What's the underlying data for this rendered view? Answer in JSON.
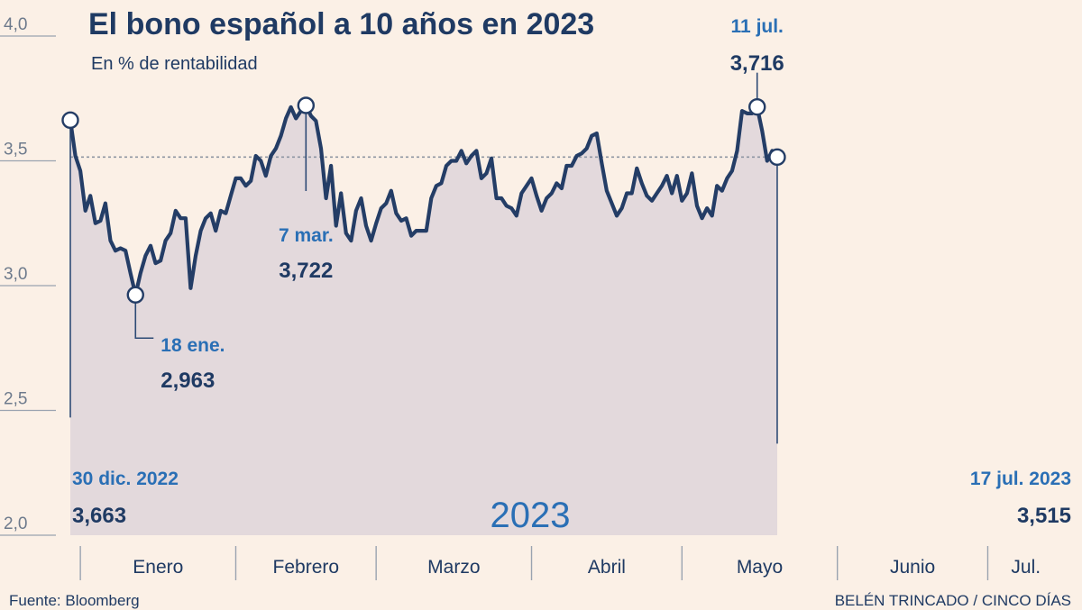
{
  "chart_data": {
    "type": "area",
    "title": "El bono español a 10 años en 2023",
    "subtitle": "En % de rentabilidad",
    "year_label": "2023",
    "ylim": [
      2.0,
      4.0
    ],
    "yticks": [
      {
        "value": 2.0,
        "label": "2,0"
      },
      {
        "value": 2.5,
        "label": "2,5"
      },
      {
        "value": 3.0,
        "label": "3,0"
      },
      {
        "value": 3.5,
        "label": "3,5"
      },
      {
        "value": 4.0,
        "label": "4,0"
      }
    ],
    "reference_line": 3.515,
    "months": [
      "Enero",
      "Febrero",
      "Marzo",
      "Abril",
      "Mayo",
      "Junio",
      "Jul."
    ],
    "month_days": [
      0,
      31,
      59,
      90,
      120,
      151,
      181
    ],
    "x_start": -2,
    "x_end": 198,
    "series": [
      {
        "values": [
          [
            -2,
            3.663
          ],
          [
            -1,
            3.52
          ],
          [
            0,
            3.46
          ],
          [
            1,
            3.3
          ],
          [
            2,
            3.36
          ],
          [
            3,
            3.25
          ],
          [
            4,
            3.26
          ],
          [
            5,
            3.33
          ],
          [
            6,
            3.18
          ],
          [
            7,
            3.14
          ],
          [
            8,
            3.15
          ],
          [
            9,
            3.14
          ],
          [
            10,
            3.05
          ],
          [
            11,
            2.963
          ],
          [
            12,
            3.05
          ],
          [
            13,
            3.12
          ],
          [
            14,
            3.16
          ],
          [
            15,
            3.09
          ],
          [
            16,
            3.1
          ],
          [
            17,
            3.18
          ],
          [
            18,
            3.21
          ],
          [
            19,
            3.3
          ],
          [
            20,
            3.27
          ],
          [
            21,
            3.27
          ],
          [
            22,
            2.99
          ],
          [
            23,
            3.12
          ],
          [
            24,
            3.22
          ],
          [
            25,
            3.27
          ],
          [
            26,
            3.29
          ],
          [
            27,
            3.22
          ],
          [
            28,
            3.3
          ],
          [
            29,
            3.29
          ],
          [
            30,
            3.36
          ],
          [
            31,
            3.43
          ],
          [
            32,
            3.43
          ],
          [
            33,
            3.4
          ],
          [
            34,
            3.42
          ],
          [
            35,
            3.52
          ],
          [
            36,
            3.5
          ],
          [
            37,
            3.44
          ],
          [
            38,
            3.52
          ],
          [
            39,
            3.55
          ],
          [
            40,
            3.6
          ],
          [
            41,
            3.67
          ],
          [
            42,
            3.715
          ],
          [
            43,
            3.67
          ],
          [
            44,
            3.7
          ],
          [
            45,
            3.722
          ],
          [
            46,
            3.68
          ],
          [
            47,
            3.66
          ],
          [
            48,
            3.55
          ],
          [
            49,
            3.35
          ],
          [
            50,
            3.48
          ],
          [
            51,
            3.24
          ],
          [
            52,
            3.37
          ],
          [
            53,
            3.21
          ],
          [
            54,
            3.18
          ],
          [
            55,
            3.3
          ],
          [
            56,
            3.35
          ],
          [
            57,
            3.24
          ],
          [
            58,
            3.18
          ],
          [
            59,
            3.25
          ],
          [
            60,
            3.31
          ],
          [
            61,
            3.33
          ],
          [
            62,
            3.38
          ],
          [
            63,
            3.29
          ],
          [
            64,
            3.26
          ],
          [
            65,
            3.27
          ],
          [
            66,
            3.2
          ],
          [
            67,
            3.22
          ],
          [
            68,
            3.22
          ],
          [
            69,
            3.22
          ],
          [
            70,
            3.35
          ],
          [
            71,
            3.4
          ],
          [
            72,
            3.41
          ],
          [
            73,
            3.48
          ],
          [
            74,
            3.5
          ],
          [
            75,
            3.5
          ],
          [
            76,
            3.54
          ],
          [
            77,
            3.49
          ],
          [
            78,
            3.52
          ],
          [
            79,
            3.54
          ],
          [
            80,
            3.43
          ],
          [
            81,
            3.45
          ],
          [
            82,
            3.51
          ],
          [
            83,
            3.35
          ],
          [
            84,
            3.35
          ],
          [
            85,
            3.32
          ],
          [
            86,
            3.31
          ],
          [
            87,
            3.28
          ],
          [
            88,
            3.37
          ],
          [
            89,
            3.4
          ],
          [
            90,
            3.43
          ],
          [
            91,
            3.36
          ],
          [
            92,
            3.3
          ],
          [
            93,
            3.35
          ],
          [
            94,
            3.37
          ],
          [
            95,
            3.41
          ],
          [
            96,
            3.39
          ],
          [
            97,
            3.48
          ],
          [
            98,
            3.48
          ],
          [
            99,
            3.52
          ],
          [
            100,
            3.53
          ],
          [
            101,
            3.55
          ],
          [
            102,
            3.6
          ],
          [
            103,
            3.61
          ],
          [
            104,
            3.49
          ],
          [
            105,
            3.38
          ],
          [
            106,
            3.33
          ],
          [
            107,
            3.28
          ],
          [
            108,
            3.31
          ],
          [
            109,
            3.37
          ],
          [
            110,
            3.37
          ],
          [
            111,
            3.47
          ],
          [
            112,
            3.41
          ],
          [
            113,
            3.36
          ],
          [
            114,
            3.34
          ],
          [
            115,
            3.37
          ],
          [
            116,
            3.4
          ],
          [
            117,
            3.44
          ],
          [
            118,
            3.37
          ],
          [
            119,
            3.44
          ],
          [
            120,
            3.34
          ],
          [
            121,
            3.37
          ],
          [
            122,
            3.45
          ],
          [
            123,
            3.32
          ],
          [
            124,
            3.27
          ],
          [
            125,
            3.31
          ],
          [
            126,
            3.28
          ],
          [
            127,
            3.4
          ],
          [
            128,
            3.38
          ],
          [
            129,
            3.43
          ],
          [
            130,
            3.46
          ],
          [
            131,
            3.54
          ],
          [
            132,
            3.7
          ],
          [
            133,
            3.69
          ],
          [
            134,
            3.69
          ],
          [
            135,
            3.716
          ],
          [
            136,
            3.62
          ],
          [
            137,
            3.5
          ],
          [
            138,
            3.54
          ],
          [
            139,
            3.515
          ]
        ]
      }
    ],
    "annotations": [
      {
        "x": -2,
        "y": 3.663,
        "date": "30 dic. 2022",
        "value": "3,663"
      },
      {
        "x": 11,
        "y": 2.963,
        "date": "18 ene.",
        "value": "2,963"
      },
      {
        "x": 45,
        "y": 3.722,
        "date": "7 mar.",
        "value": "3,722"
      },
      {
        "x": 135,
        "y": 3.716,
        "date": "11 jul.",
        "value": "3,716"
      },
      {
        "x": 139,
        "y": 3.515,
        "date": "17 jul. 2023",
        "value": "3,515"
      }
    ]
  },
  "footer": {
    "source": "Fuente: Bloomberg",
    "credit": "BELÉN TRINCADO / CINCO DÍAS"
  },
  "colors": {
    "background": "#fbf0e6",
    "line": "#243d66",
    "area": "#e0d6da",
    "accent": "#2a6fb5"
  }
}
